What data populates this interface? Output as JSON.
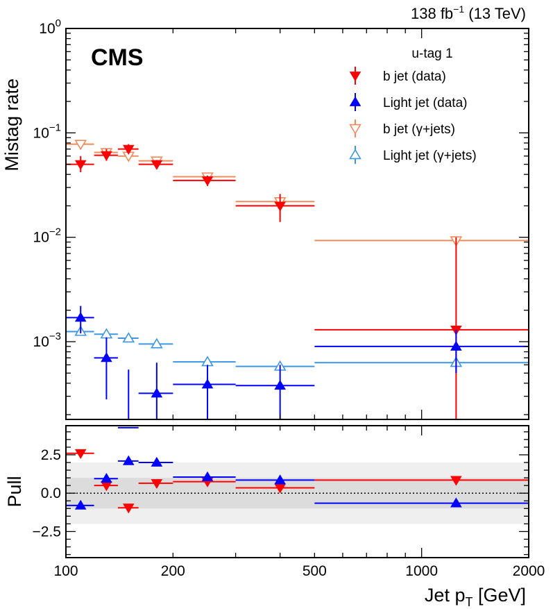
{
  "chart_data": [
    {
      "type": "scatter",
      "panel": "main",
      "title": "",
      "experiment_label": "CMS",
      "lumi_label": {
        "main": "138 fb",
        "sup": "−1",
        "tail": " (13 TeV)"
      },
      "xlabel": {
        "main": "Jet p",
        "sub": "T",
        "tail": " [GeV]"
      },
      "ylabel": "Mistag rate",
      "xscale": "log",
      "yscale": "log",
      "xlim": [
        100,
        2000
      ],
      "ylim": [
        0.00018,
        1
      ],
      "x_ticks": [
        100,
        200,
        500,
        1000,
        2000
      ],
      "x_tick_labels": [
        "100",
        "200",
        "500",
        "1000",
        "2000"
      ],
      "y_ticks": [
        0.001,
        0.01,
        0.1,
        1
      ],
      "y_tick_labels": [
        {
          "base": "10",
          "exp": "−3"
        },
        {
          "base": "10",
          "exp": "−2"
        },
        {
          "base": "10",
          "exp": "−1"
        },
        {
          "base": "10",
          "exp": "0"
        }
      ],
      "legend": {
        "title": "u-tag 1",
        "placement": "top-right"
      },
      "series": [
        {
          "name": "b jet (data)",
          "color": "#ff0000",
          "marker": "triangle-down",
          "filled": true,
          "points": [
            {
              "x": 110,
              "xlo": 100,
              "xhi": 120,
              "y": 0.05,
              "ylo": 0.042,
              "yhi": 0.06
            },
            {
              "x": 130,
              "xlo": 120,
              "xhi": 140,
              "y": 0.061,
              "ylo": 0.054,
              "yhi": 0.07
            },
            {
              "x": 150,
              "xlo": 140,
              "xhi": 160,
              "y": 0.07,
              "ylo": 0.063,
              "yhi": 0.078
            },
            {
              "x": 180,
              "xlo": 160,
              "xhi": 200,
              "y": 0.05,
              "ylo": 0.046,
              "yhi": 0.055
            },
            {
              "x": 250,
              "xlo": 200,
              "xhi": 300,
              "y": 0.035,
              "ylo": 0.031,
              "yhi": 0.039
            },
            {
              "x": 400,
              "xlo": 300,
              "xhi": 500,
              "y": 0.02,
              "ylo": 0.014,
              "yhi": 0.026
            },
            {
              "x": 1250,
              "xlo": 500,
              "xhi": 2000,
              "y": 0.0013,
              "ylo": 0.00011,
              "yhi": 0.01
            }
          ]
        },
        {
          "name": "Light jet (data)",
          "color": "#0000ff",
          "marker": "triangle-up",
          "filled": true,
          "points": [
            {
              "x": 110,
              "xlo": 100,
              "xhi": 120,
              "y": 0.0017,
              "ylo": 0.0012,
              "yhi": 0.0022
            },
            {
              "x": 130,
              "xlo": 120,
              "xhi": 140,
              "y": 0.0007,
              "ylo": 0.00028,
              "yhi": 0.0011
            },
            {
              "x": 150,
              "xlo": 140,
              "xhi": 160,
              "y": 0.00015,
              "ylo": 0.0001,
              "yhi": 0.00054
            },
            {
              "x": 180,
              "xlo": 160,
              "xhi": 200,
              "y": 0.00032,
              "ylo": 0.00016,
              "yhi": 0.00063
            },
            {
              "x": 250,
              "xlo": 200,
              "xhi": 300,
              "y": 0.00039,
              "ylo": 0.0001,
              "yhi": 0.0006
            },
            {
              "x": 400,
              "xlo": 300,
              "xhi": 500,
              "y": 0.00038,
              "ylo": 0.0001,
              "yhi": 0.0006
            },
            {
              "x": 1250,
              "xlo": 500,
              "xhi": 2000,
              "y": 0.0009,
              "ylo": 0.0005,
              "yhi": 0.0013
            }
          ]
        },
        {
          "name": "b jet (γ+jets)",
          "color": "#f08c5a",
          "marker": "triangle-down",
          "filled": false,
          "points": [
            {
              "x": 110,
              "xlo": 100,
              "xhi": 120,
              "y": 0.078,
              "ylo": 0.075,
              "yhi": 0.081
            },
            {
              "x": 130,
              "xlo": 120,
              "xhi": 140,
              "y": 0.065,
              "ylo": 0.063,
              "yhi": 0.067
            },
            {
              "x": 150,
              "xlo": 140,
              "xhi": 160,
              "y": 0.06,
              "ylo": 0.058,
              "yhi": 0.062
            },
            {
              "x": 180,
              "xlo": 160,
              "xhi": 200,
              "y": 0.054,
              "ylo": 0.052,
              "yhi": 0.056
            },
            {
              "x": 250,
              "xlo": 200,
              "xhi": 300,
              "y": 0.038,
              "ylo": 0.036,
              "yhi": 0.04
            },
            {
              "x": 400,
              "xlo": 300,
              "xhi": 500,
              "y": 0.022,
              "ylo": 0.02,
              "yhi": 0.024
            },
            {
              "x": 1250,
              "xlo": 500,
              "xhi": 2000,
              "y": 0.0093,
              "ylo": 0.0085,
              "yhi": 0.0101
            }
          ]
        },
        {
          "name": "Light jet (γ+jets)",
          "color": "#3c96e6",
          "marker": "triangle-up",
          "filled": false,
          "points": [
            {
              "x": 110,
              "xlo": 100,
              "xhi": 120,
              "y": 0.00125,
              "ylo": 0.00118,
              "yhi": 0.00132
            },
            {
              "x": 130,
              "xlo": 120,
              "xhi": 140,
              "y": 0.00118,
              "ylo": 0.00112,
              "yhi": 0.00124
            },
            {
              "x": 150,
              "xlo": 140,
              "xhi": 160,
              "y": 0.00108,
              "ylo": 0.00103,
              "yhi": 0.00113
            },
            {
              "x": 180,
              "xlo": 160,
              "xhi": 200,
              "y": 0.00095,
              "ylo": 0.00091,
              "yhi": 0.00099
            },
            {
              "x": 250,
              "xlo": 200,
              "xhi": 300,
              "y": 0.00064,
              "ylo": 0.00061,
              "yhi": 0.00067
            },
            {
              "x": 400,
              "xlo": 300,
              "xhi": 500,
              "y": 0.00058,
              "ylo": 0.00054,
              "yhi": 0.00062
            },
            {
              "x": 1250,
              "xlo": 500,
              "xhi": 2000,
              "y": 0.00063,
              "ylo": 0.00055,
              "yhi": 0.00071
            }
          ]
        }
      ]
    },
    {
      "type": "scatter",
      "panel": "pull",
      "ylabel": "Pull",
      "xscale": "log",
      "xlim": [
        100,
        2000
      ],
      "ylim": [
        -4.2,
        4.4
      ],
      "y_ticks": [
        -2.5,
        0.0,
        2.5
      ],
      "y_tick_labels": [
        "−2.5",
        "0.0",
        "2.5"
      ],
      "bands": [
        {
          "from": -2,
          "to": 2,
          "color": "#efefef"
        },
        {
          "from": -1,
          "to": 1,
          "color": "#dcdcdc"
        }
      ],
      "reference_line": 0,
      "series": [
        {
          "name": "b jet",
          "color": "#ff0000",
          "marker": "triangle-down",
          "points": [
            {
              "xlo": 100,
              "xhi": 120,
              "x": 110,
              "y": 2.6
            },
            {
              "xlo": 120,
              "xhi": 140,
              "x": 130,
              "y": 0.5
            },
            {
              "xlo": 140,
              "xhi": 160,
              "x": 150,
              "y": -0.95
            },
            {
              "xlo": 160,
              "xhi": 200,
              "x": 180,
              "y": 0.65
            },
            {
              "xlo": 200,
              "xhi": 300,
              "x": 250,
              "y": 0.75
            },
            {
              "xlo": 300,
              "xhi": 500,
              "x": 400,
              "y": 0.35
            },
            {
              "xlo": 500,
              "xhi": 2000,
              "x": 1250,
              "y": 0.85
            }
          ]
        },
        {
          "name": "Light jet",
          "color": "#0000ff",
          "marker": "triangle-up",
          "points": [
            {
              "xlo": 100,
              "xhi": 120,
              "x": 110,
              "y": -0.8
            },
            {
              "xlo": 120,
              "xhi": 140,
              "x": 130,
              "y": 0.95
            },
            {
              "xlo": 140,
              "xhi": 160,
              "x": 150,
              "y": 2.1
            },
            {
              "xlo": 160,
              "xhi": 200,
              "x": 180,
              "y": 2.0
            },
            {
              "xlo": 200,
              "xhi": 300,
              "x": 250,
              "y": 1.05
            },
            {
              "xlo": 300,
              "xhi": 500,
              "x": 400,
              "y": 0.85
            },
            {
              "xlo": 500,
              "xhi": 2000,
              "x": 1250,
              "y": -0.65
            }
          ]
        }
      ]
    }
  ]
}
